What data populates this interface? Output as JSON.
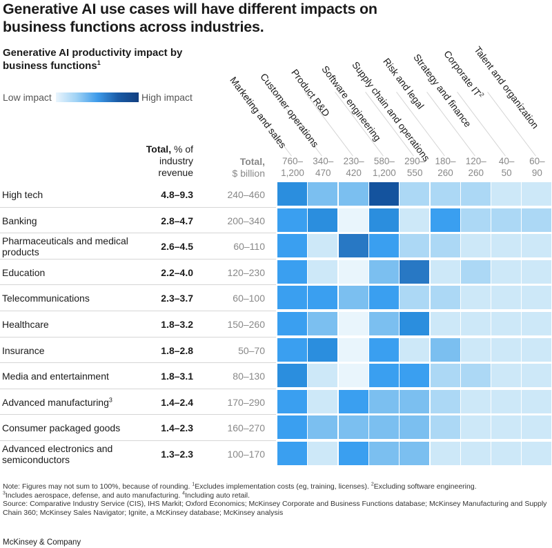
{
  "title": "Generative AI use cases will have different impacts on business functions across industries.",
  "subtitle": "Generative AI productivity impact by business functions",
  "subtitle_sup": "1",
  "legend": {
    "low": "Low impact",
    "high": "High impact"
  },
  "header": {
    "total_pct": {
      "bold": "Total,",
      "rest": " % of industry revenue"
    },
    "total_bn": {
      "bold": "Total,",
      "rest": "$ billion"
    }
  },
  "notes": {
    "line1_a": "Note: Figures may not sum to 100%, because of rounding. ",
    "line1_b": "Excludes implementation costs (eg, training, licenses). ",
    "line1_c": "Excluding software engineering.",
    "line2_a": "Includes aerospace, defense, and auto manufacturing. ",
    "line2_b": "Including auto retail.",
    "line3": "Source: Comparative Industry Service (CIS), IHS Markit; Oxford Economics; McKinsey Corporate and Business Functions database; McKinsey Manufacturing and Supply Chain 360; McKinsey Sales Navigator; Ignite, a McKinsey database; McKinsey analysis",
    "sup1": "1",
    "sup2": "2",
    "sup3": "3",
    "sup4": "4"
  },
  "brand": "McKinsey & Company",
  "colors": [
    "#e9f5fc",
    "#cde8f8",
    "#acd8f5",
    "#7bbff0",
    "#3a9ff0",
    "#2b8ede",
    "#2878c4",
    "#14539e"
  ],
  "chart_data": {
    "type": "heatmap",
    "columns": [
      {
        "name": "Marketing and sales",
        "range": "760–1,200"
      },
      {
        "name": "Customer operations",
        "range": "340–470"
      },
      {
        "name": "Product R&D",
        "range": "230–420"
      },
      {
        "name": "Software engineering",
        "range": "580–1,200"
      },
      {
        "name": "Supply chain and operations",
        "range": "290–550"
      },
      {
        "name": "Risk and legal",
        "range": "180–260"
      },
      {
        "name": "Strategy and finance",
        "range": "120–260"
      },
      {
        "name": "Corporate IT",
        "name_sup": "2",
        "range": "40–50"
      },
      {
        "name": "Talent and organization",
        "range": "60–90"
      }
    ],
    "rows": [
      {
        "industry": "High tech",
        "pct": "4.8–9.3",
        "bn": "240–460",
        "levels": [
          5,
          3,
          3,
          7,
          2,
          2,
          2,
          1,
          1
        ]
      },
      {
        "industry": "Banking",
        "pct": "2.8–4.7",
        "bn": "200–340",
        "levels": [
          4,
          5,
          0,
          5,
          1,
          4,
          2,
          2,
          2
        ]
      },
      {
        "industry": "Pharmaceuticals and medical products",
        "pct": "2.6–4.5",
        "bn": "60–110",
        "levels": [
          4,
          1,
          6,
          4,
          2,
          2,
          1,
          1,
          1
        ]
      },
      {
        "industry": "Education",
        "pct": "2.2–4.0",
        "bn": "120–230",
        "levels": [
          4,
          1,
          0,
          3,
          6,
          1,
          2,
          1,
          1
        ]
      },
      {
        "industry": "Telecommunications",
        "pct": "2.3–3.7",
        "bn": "60–100",
        "levels": [
          4,
          4,
          3,
          4,
          2,
          2,
          1,
          1,
          1
        ]
      },
      {
        "industry": "Healthcare",
        "pct": "1.8–3.2",
        "bn": "150–260",
        "levels": [
          4,
          3,
          0,
          3,
          5,
          1,
          1,
          1,
          1
        ]
      },
      {
        "industry": "Insurance",
        "pct": "1.8–2.8",
        "bn": "50–70",
        "levels": [
          4,
          5,
          0,
          4,
          1,
          3,
          1,
          1,
          1
        ]
      },
      {
        "industry": "Media and entertainment",
        "pct": "1.8–3.1",
        "bn": "80–130",
        "levels": [
          5,
          1,
          0,
          4,
          4,
          2,
          2,
          1,
          1
        ]
      },
      {
        "industry": "Advanced manufacturing",
        "industry_sup": "3",
        "pct": "1.4–2.4",
        "bn": "170–290",
        "levels": [
          4,
          1,
          4,
          3,
          3,
          2,
          1,
          1,
          1
        ]
      },
      {
        "industry": "Consumer packaged goods",
        "pct": "1.4–2.3",
        "bn": "160–270",
        "levels": [
          4,
          3,
          3,
          3,
          3,
          2,
          1,
          1,
          1
        ]
      },
      {
        "industry": "Advanced electronics and semiconductors",
        "pct": "1.3–2.3",
        "bn": "100–170",
        "levels": [
          4,
          1,
          4,
          3,
          3,
          1,
          1,
          1,
          1
        ]
      }
    ]
  }
}
